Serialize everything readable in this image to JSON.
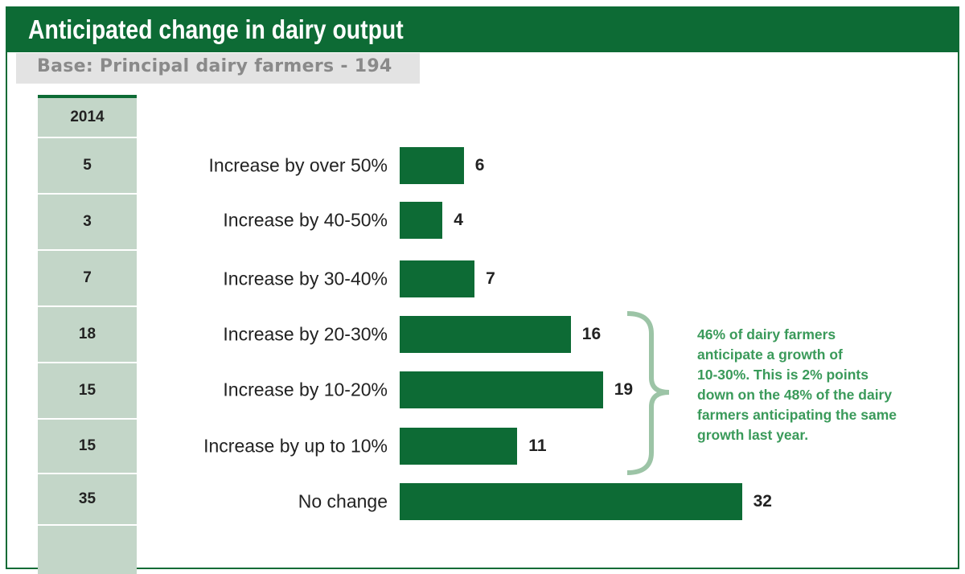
{
  "chart_data": {
    "type": "bar",
    "orientation": "horizontal",
    "title": "Anticipated change in dairy output",
    "subtitle": "Base: Principal dairy farmers - 194",
    "comparison_column_header": "2014",
    "categories": [
      "Increase by over 50%",
      "Increase by 40-50%",
      "Increase by 30-40%",
      "Increase by 20-30%",
      "Increase by 10-20%",
      "Increase by up to 10%",
      "No change"
    ],
    "values": [
      6,
      4,
      7,
      16,
      19,
      11,
      32
    ],
    "comparison_values": [
      5,
      3,
      7,
      18,
      15,
      15,
      35
    ],
    "annotation": "46% of dairy farmers anticipate a growth of 10-30%. This is 2% points down on the 48% of the dairy farmers anticipating the same growth last year.",
    "annotation_lines": [
      "46% of dairy farmers",
      "anticipate a growth of",
      "10-30%. This is 2% points",
      "down on the 48% of the dairy",
      "farmers anticipating the same",
      "growth last year."
    ],
    "bar_color": "#0d6b35",
    "annotation_color": "#3a9a5a",
    "grid": false
  }
}
